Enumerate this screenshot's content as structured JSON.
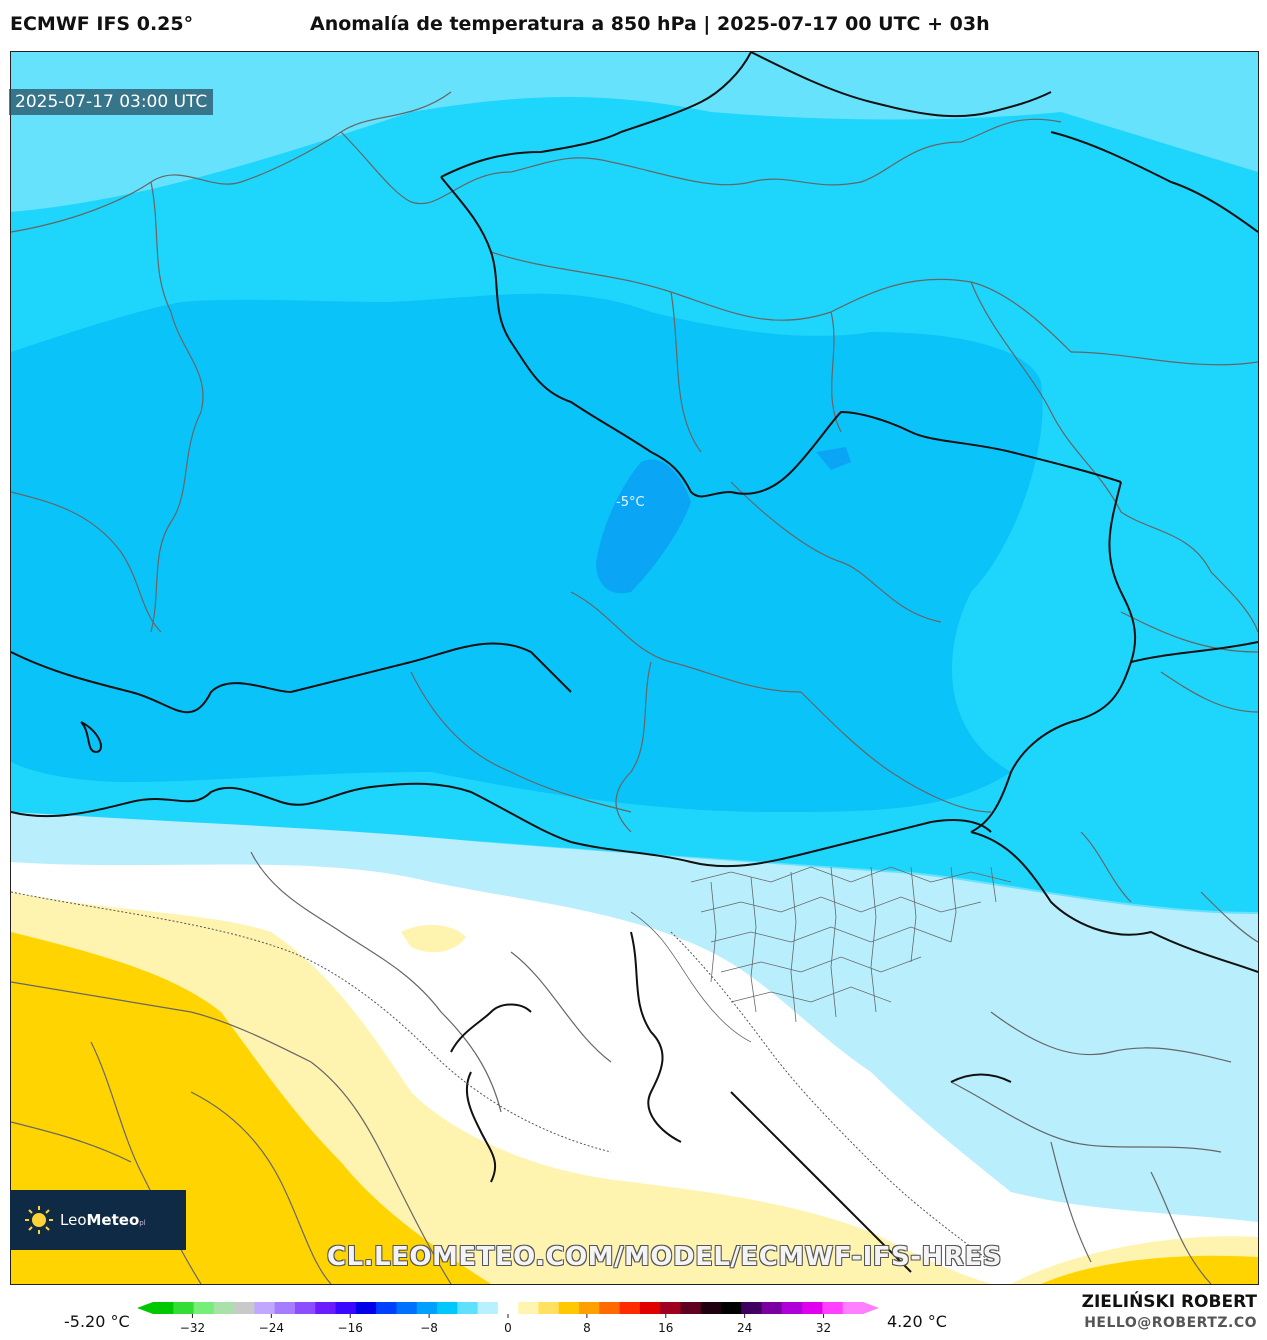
{
  "header": {
    "model": "ECMWF IFS 0.25°",
    "title": "Anomalía de temperatura a 850 hPa | 2025-07-17 00 UTC + 03h"
  },
  "map": {
    "timestamp": "2025-07-17 03:00 UTC",
    "isotherm_label": "-5°C",
    "watermark": "CL.LEOMETEO.COM/MODEL/ECMWF-IFS-HRES"
  },
  "logo": {
    "brand_light": "Leo",
    "brand_bold": "Meteo",
    "suffix": "pl"
  },
  "colorbar": {
    "min_label": "-5.20 °C",
    "max_label": "4.20 °C",
    "ticks": [
      "−32",
      "−24",
      "−16",
      "−8",
      "0",
      "8",
      "16",
      "24",
      "32"
    ],
    "tick_values": [
      -32,
      -24,
      -16,
      -8,
      0,
      8,
      16,
      24,
      32
    ],
    "range": [
      -36,
      36
    ],
    "colors": [
      "#00c800",
      "#33dd33",
      "#77ee77",
      "#aae0aa",
      "#c9c9c9",
      "#c0a7ff",
      "#a77dff",
      "#8b4dff",
      "#6a1cff",
      "#3a08ff",
      "#0000e8",
      "#0040ff",
      "#0070ff",
      "#00a0ff",
      "#00c8ff",
      "#5fe0ff",
      "#b8f0ff",
      "#ffffff",
      "#fff5b0",
      "#ffe060",
      "#ffc800",
      "#ffa000",
      "#ff6a00",
      "#ff2b00",
      "#e00000",
      "#a00020",
      "#600020",
      "#200010",
      "#000000",
      "#400060",
      "#7a00a0",
      "#b000d8",
      "#e000f0",
      "#ff40ff",
      "#ff80ff"
    ]
  },
  "credits": {
    "author": "ZIELIŃSKI ROBERT",
    "email": "HELLO@ROBERTZ.CO"
  },
  "fill_colors": {
    "anomaly_minus5": "#0aa6f5",
    "anomaly_minus4": "#0ac3f9",
    "anomaly_minus3": "#1ed5fb",
    "anomaly_minus2": "#66e2fc",
    "anomaly_minus1": "#b9eefd",
    "anomaly_0": "#ffffff",
    "anomaly_plus1": "#fff3b0",
    "anomaly_plus2": "#ffd400"
  }
}
